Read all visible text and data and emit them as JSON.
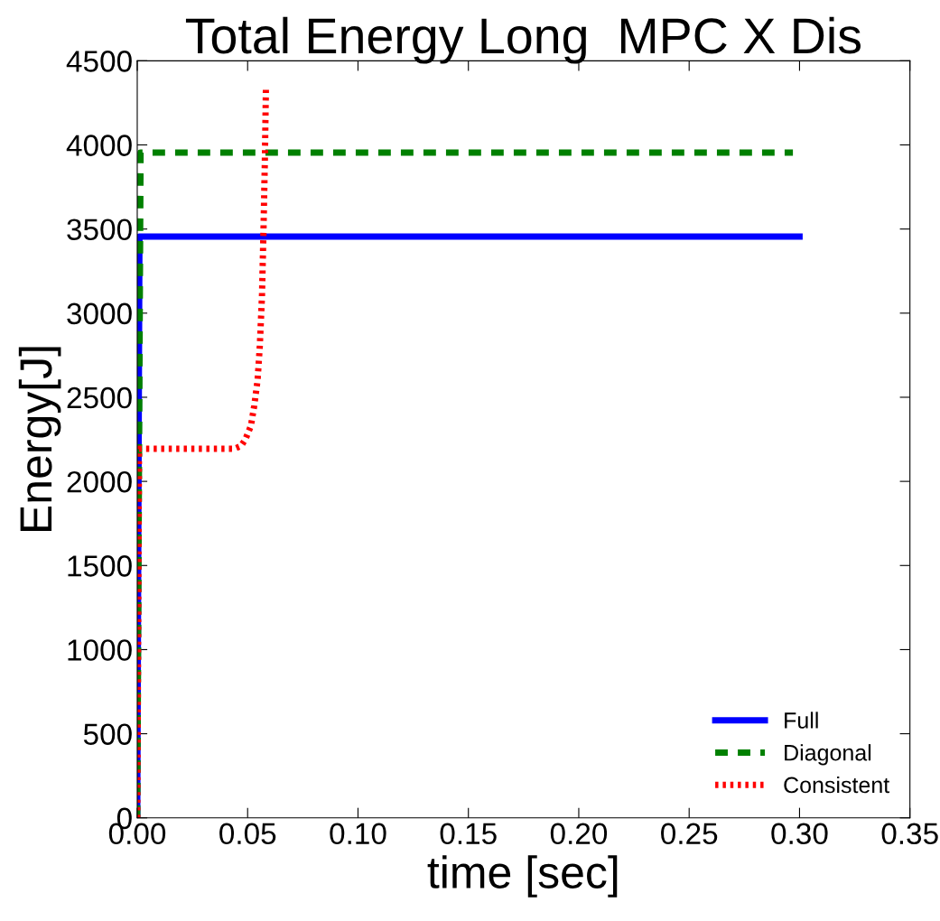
{
  "chart_data": {
    "type": "line",
    "title": "Total Energy Long  MPC X Dis",
    "xlabel": "time [sec]",
    "ylabel": "Energy[J]",
    "xlim": [
      0,
      0.35
    ],
    "xticks": [
      {
        "value": 0,
        "label": "0.00"
      },
      0.05,
      {
        "value": 0.1,
        "label": "0.10"
      },
      0.15,
      {
        "value": 0.2,
        "label": "0.20"
      },
      0.25,
      {
        "value": 0.3,
        "label": "0.30"
      },
      0.35
    ],
    "ylim": [
      0,
      4500
    ],
    "yticks": [
      0,
      500,
      1000,
      1500,
      2000,
      2500,
      3000,
      3500,
      4000,
      4500
    ],
    "grid": false,
    "legend": "bottom right",
    "series": [
      {
        "name": "Full",
        "color": "#0000ff",
        "line_style": "solid",
        "x": [
          0,
          0.001,
          0.3
        ],
        "values": [
          0,
          3455,
          3455
        ]
      },
      {
        "name": "Diagonal",
        "color": "#008000",
        "line_style": "dashed",
        "x": [
          0,
          0.0015,
          0.297
        ],
        "values": [
          0,
          3954,
          3954
        ]
      },
      {
        "name": "Consistent",
        "color": "#ff0000",
        "line_style": "dotted",
        "x": [
          0,
          0.0008,
          0.044,
          0.047,
          0.049,
          0.0515,
          0.053,
          0.0545,
          0.0555,
          0.0565,
          0.0572,
          0.0578,
          0.0583
        ],
        "values": [
          0,
          2194,
          2194,
          2210,
          2250,
          2330,
          2450,
          2600,
          2800,
          3100,
          3500,
          3900,
          4350
        ]
      }
    ]
  }
}
